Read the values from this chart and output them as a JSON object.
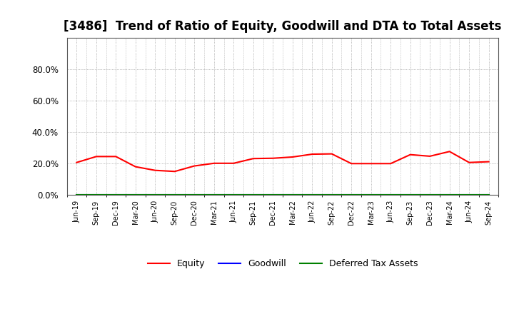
{
  "title": "[3486]  Trend of Ratio of Equity, Goodwill and DTA to Total Assets",
  "x_labels": [
    "Jun-19",
    "Sep-19",
    "Dec-19",
    "Mar-20",
    "Jun-20",
    "Sep-20",
    "Dec-20",
    "Mar-21",
    "Jun-21",
    "Sep-21",
    "Dec-21",
    "Mar-22",
    "Jun-22",
    "Sep-22",
    "Dec-22",
    "Mar-23",
    "Jun-23",
    "Sep-23",
    "Dec-23",
    "Mar-24",
    "Jun-24",
    "Sep-24"
  ],
  "equity": [
    0.205,
    0.243,
    0.243,
    0.178,
    0.155,
    0.148,
    0.183,
    0.2,
    0.2,
    0.23,
    0.232,
    0.24,
    0.258,
    0.26,
    0.198,
    0.198,
    0.198,
    0.255,
    0.245,
    0.275,
    0.205,
    0.21
  ],
  "goodwill": [
    0.0,
    0.0,
    0.0,
    0.0,
    0.0,
    0.0,
    0.0,
    0.0,
    0.0,
    0.0,
    0.0,
    0.0,
    0.0,
    0.0,
    0.0,
    0.0,
    0.0,
    0.0,
    0.0,
    0.0,
    0.0,
    0.0
  ],
  "dta": [
    0.0,
    0.0,
    0.0,
    0.0,
    0.0,
    0.0,
    0.0,
    0.0,
    0.0,
    0.0,
    0.0,
    0.0,
    0.0,
    0.0,
    0.0,
    0.0,
    0.0,
    0.0,
    0.0,
    0.0,
    0.0,
    0.0
  ],
  "equity_color": "#ff0000",
  "goodwill_color": "#0000ff",
  "dta_color": "#008000",
  "ylim": [
    0.0,
    1.0
  ],
  "yticks": [
    0.0,
    0.2,
    0.4,
    0.6,
    0.8
  ],
  "background_color": "#ffffff",
  "plot_bg_color": "#ffffff",
  "grid_color": "#888888",
  "title_fontsize": 12,
  "legend_entries": [
    "Equity",
    "Goodwill",
    "Deferred Tax Assets"
  ]
}
